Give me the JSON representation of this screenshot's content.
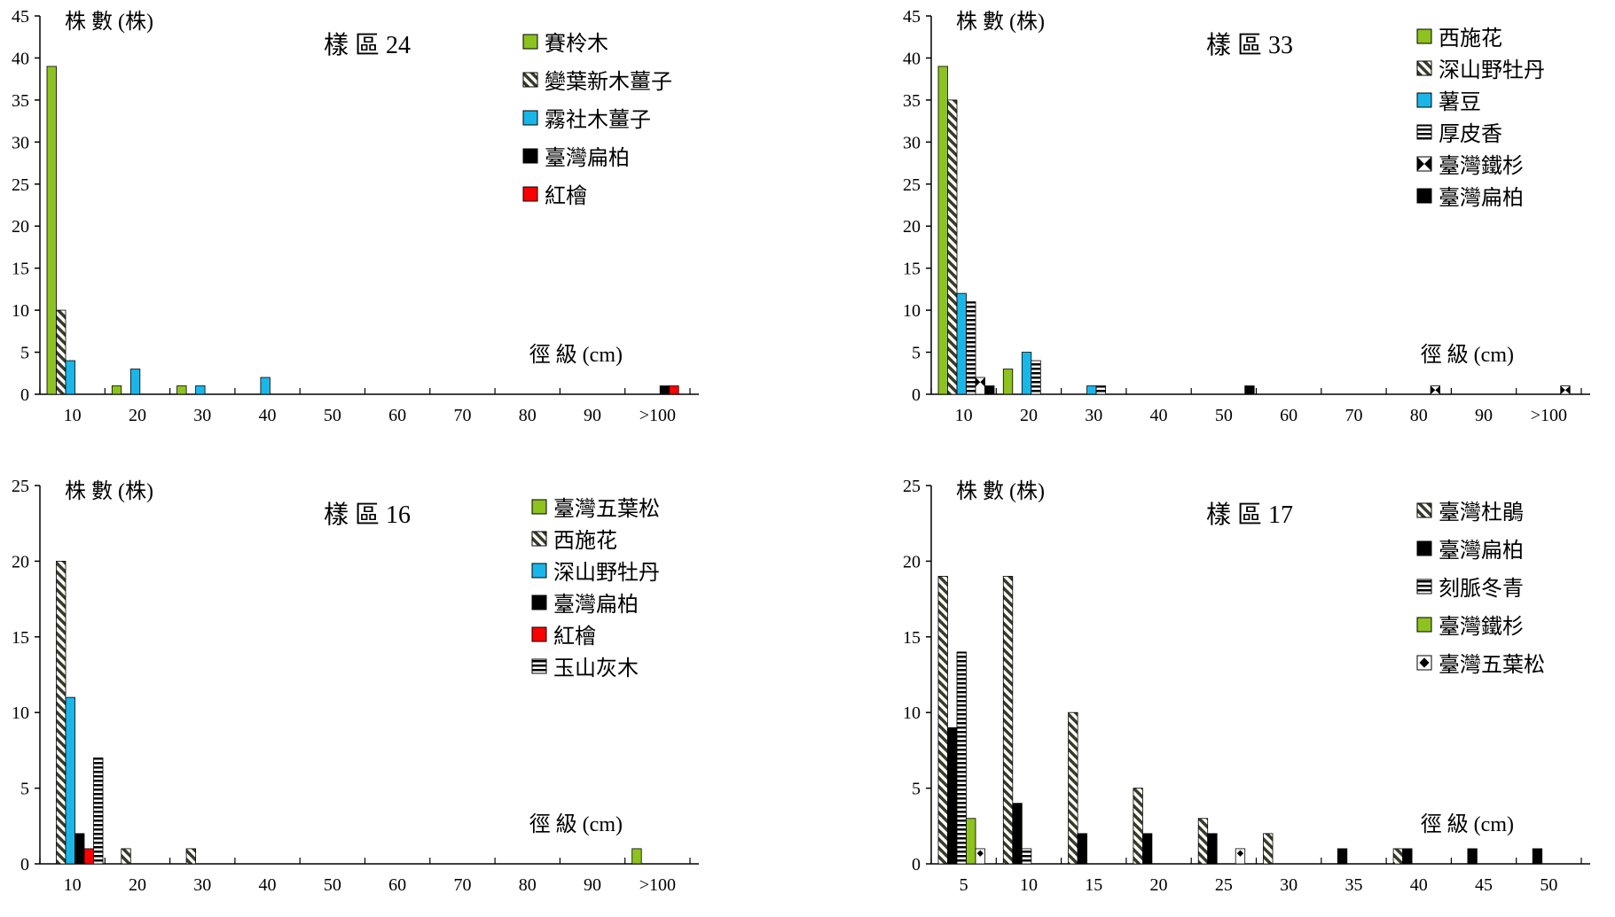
{
  "patterns": {
    "green": "#8DC21F",
    "diag": "diagonal-stripe",
    "cyan": "#1BB6E8",
    "black": "#000000",
    "red": "#FF0000",
    "hstripe": "horizontal-stripe",
    "bowtie": "bowtie",
    "diamond": "diamond"
  },
  "chart_data": [
    {
      "type": "bar",
      "title": "樣 區 24",
      "ylabel": "株 數 (株)",
      "xlabel": "徑 級 (cm)",
      "ylim": [
        0,
        45
      ],
      "yticks": [
        0,
        5,
        10,
        15,
        20,
        25,
        30,
        35,
        40,
        45
      ],
      "categories": [
        "10",
        "20",
        "30",
        "40",
        "50",
        "60",
        "70",
        "80",
        "90",
        ">100"
      ],
      "legend_position": "top-right",
      "series": [
        {
          "name": "賽柃木",
          "fill": "green",
          "values": [
            39,
            1,
            1,
            0,
            0,
            0,
            0,
            0,
            0,
            0
          ]
        },
        {
          "name": "變葉新木薑子",
          "fill": "diag",
          "values": [
            10,
            0,
            0,
            0,
            0,
            0,
            0,
            0,
            0,
            0
          ]
        },
        {
          "name": "霧社木薑子",
          "fill": "cyan",
          "values": [
            4,
            3,
            1,
            2,
            0,
            0,
            0,
            0,
            0,
            0
          ]
        },
        {
          "name": "臺灣扁柏",
          "fill": "black",
          "values": [
            0,
            0,
            0,
            0,
            0,
            0,
            0,
            0,
            0,
            1
          ]
        },
        {
          "name": "紅檜",
          "fill": "red",
          "values": [
            0,
            0,
            0,
            0,
            0,
            0,
            0,
            0,
            0,
            1
          ]
        }
      ]
    },
    {
      "type": "bar",
      "title": "樣 區 33",
      "ylabel": "株 數 (株)",
      "xlabel": "徑 級 (cm)",
      "ylim": [
        0,
        45
      ],
      "yticks": [
        0,
        5,
        10,
        15,
        20,
        25,
        30,
        35,
        40,
        45
      ],
      "categories": [
        "10",
        "20",
        "30",
        "40",
        "50",
        "60",
        "70",
        "80",
        "90",
        ">100"
      ],
      "legend_position": "top-right",
      "series": [
        {
          "name": "西施花",
          "fill": "green",
          "values": [
            39,
            3,
            0,
            0,
            0,
            0,
            0,
            0,
            0,
            0
          ]
        },
        {
          "name": "深山野牡丹",
          "fill": "diag",
          "values": [
            35,
            0,
            0,
            0,
            0,
            0,
            0,
            0,
            0,
            0
          ]
        },
        {
          "name": "薯豆",
          "fill": "cyan",
          "values": [
            12,
            5,
            1,
            0,
            0,
            0,
            0,
            0,
            0,
            0
          ]
        },
        {
          "name": "厚皮香",
          "fill": "hstripe",
          "values": [
            11,
            4,
            1,
            0,
            0,
            0,
            0,
            0,
            0,
            0
          ]
        },
        {
          "name": "臺灣鐵杉",
          "fill": "bowtie",
          "values": [
            2,
            0,
            0,
            0,
            0,
            0,
            0,
            1,
            0,
            1
          ]
        },
        {
          "name": "臺灣扁柏",
          "fill": "black",
          "values": [
            1,
            0,
            0,
            0,
            1,
            0,
            0,
            0,
            0,
            0
          ]
        }
      ]
    },
    {
      "type": "bar",
      "title": "樣 區 16",
      "ylabel": "株 數 (株)",
      "xlabel": "徑 級 (cm)",
      "ylim": [
        0,
        25
      ],
      "yticks": [
        0,
        5,
        10,
        15,
        20,
        25
      ],
      "categories": [
        "10",
        "20",
        "30",
        "40",
        "50",
        "60",
        "70",
        "80",
        "90",
        ">100"
      ],
      "legend_position": "top-right",
      "series": [
        {
          "name": "臺灣五葉松",
          "fill": "green",
          "values": [
            0,
            0,
            0,
            0,
            0,
            0,
            0,
            0,
            0,
            1
          ]
        },
        {
          "name": "西施花",
          "fill": "diag",
          "values": [
            20,
            1,
            1,
            0,
            0,
            0,
            0,
            0,
            0,
            0
          ]
        },
        {
          "name": "深山野牡丹",
          "fill": "cyan",
          "values": [
            11,
            0,
            0,
            0,
            0,
            0,
            0,
            0,
            0,
            0
          ]
        },
        {
          "name": "臺灣扁柏",
          "fill": "black",
          "values": [
            2,
            0,
            0,
            0,
            0,
            0,
            0,
            0,
            0,
            0
          ]
        },
        {
          "name": "紅檜",
          "fill": "red",
          "values": [
            1,
            0,
            0,
            0,
            0,
            0,
            0,
            0,
            0,
            0
          ]
        },
        {
          "name": "玉山灰木",
          "fill": "hstripe",
          "values": [
            7,
            0,
            0,
            0,
            0,
            0,
            0,
            0,
            0,
            0
          ]
        }
      ]
    },
    {
      "type": "bar",
      "title": "樣 區 17",
      "ylabel": "株 數 (株)",
      "xlabel": "徑 級 (cm)",
      "ylim": [
        0,
        25
      ],
      "yticks": [
        0,
        5,
        10,
        15,
        20,
        25
      ],
      "categories": [
        "5",
        "10",
        "15",
        "20",
        "25",
        "30",
        "35",
        "40",
        "45",
        "50"
      ],
      "legend_position": "top-right",
      "series": [
        {
          "name": "臺灣杜鵑",
          "fill": "diag",
          "values": [
            19,
            19,
            10,
            5,
            3,
            2,
            0,
            1,
            0,
            0
          ]
        },
        {
          "name": "臺灣扁柏",
          "fill": "black",
          "values": [
            9,
            4,
            2,
            2,
            2,
            0,
            1,
            1,
            1,
            1
          ]
        },
        {
          "name": "刻脈冬青",
          "fill": "hstripe",
          "values": [
            14,
            1,
            0,
            0,
            0,
            0,
            0,
            0,
            0,
            0
          ]
        },
        {
          "name": "臺灣鐵杉",
          "fill": "green",
          "values": [
            3,
            0,
            0,
            0,
            0,
            0,
            0,
            0,
            0,
            0
          ]
        },
        {
          "name": "臺灣五葉松",
          "fill": "diamond",
          "values": [
            1,
            0,
            0,
            0,
            1,
            0,
            0,
            0,
            0,
            0
          ]
        }
      ]
    }
  ]
}
